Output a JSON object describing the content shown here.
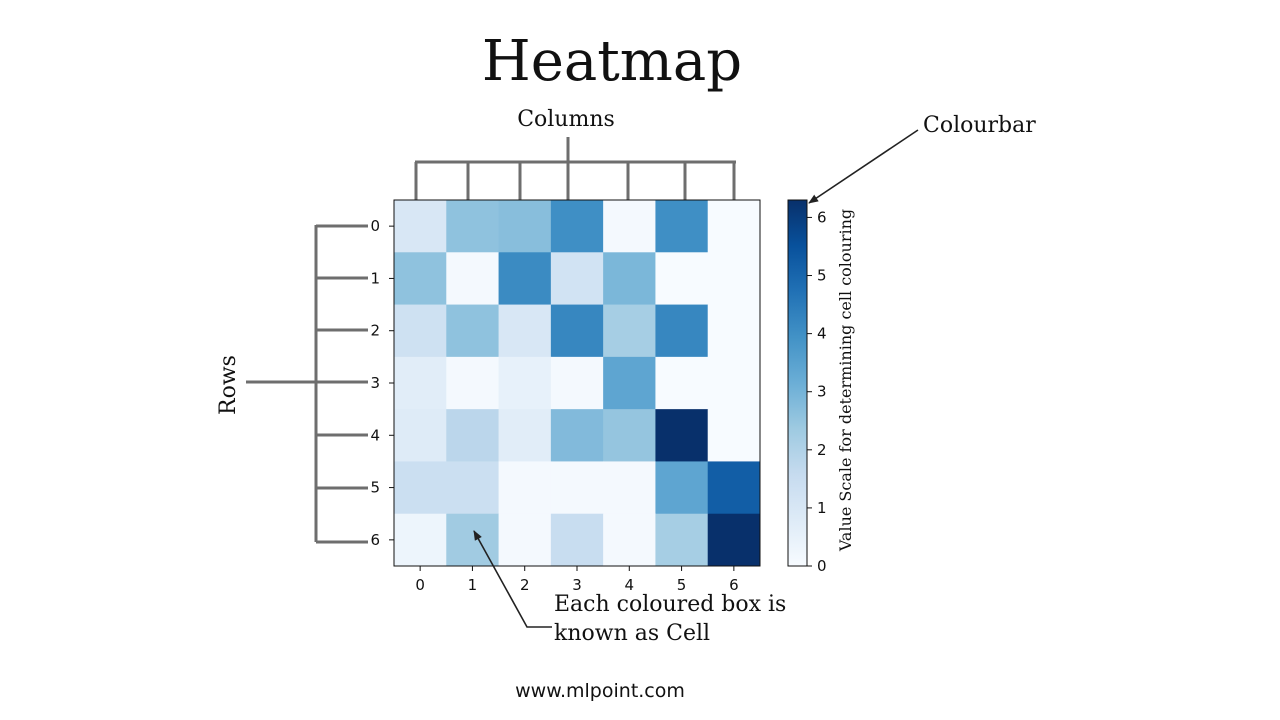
{
  "title": "Heatmap",
  "annotations": {
    "columns_label": "Columns",
    "rows_label": "Rows",
    "colourbar_label": "Colourbar",
    "cell_note_line1": "Each coloured box is",
    "cell_note_line2": "known as Cell"
  },
  "footer": "www.mlpoint.com",
  "chart_data": {
    "type": "heatmap",
    "x_ticks": [
      "0",
      "1",
      "2",
      "3",
      "4",
      "5",
      "6"
    ],
    "y_ticks": [
      "0",
      "1",
      "2",
      "3",
      "4",
      "5",
      "6"
    ],
    "values": [
      [
        1.0,
        2.6,
        2.7,
        4.0,
        0.1,
        4.0,
        0.0
      ],
      [
        2.6,
        0.1,
        4.1,
        1.2,
        2.9,
        0.0,
        0.0
      ],
      [
        1.3,
        2.6,
        1.0,
        4.2,
        2.2,
        4.2,
        0.0
      ],
      [
        0.7,
        0.1,
        0.5,
        0.1,
        3.4,
        0.0,
        0.0
      ],
      [
        0.8,
        1.8,
        0.7,
        2.8,
        2.5,
        6.3,
        0.0
      ],
      [
        1.4,
        1.4,
        0.1,
        0.1,
        0.1,
        3.4,
        5.2
      ],
      [
        0.3,
        2.3,
        0.1,
        1.5,
        0.1,
        2.2,
        6.3
      ]
    ],
    "vmin": 0,
    "vmax": 6.3,
    "colormap": "Blues",
    "colorbar": {
      "ticks": [
        0,
        1,
        2,
        3,
        4,
        5,
        6
      ],
      "label": "Value Scale for determining cell colouring"
    }
  }
}
